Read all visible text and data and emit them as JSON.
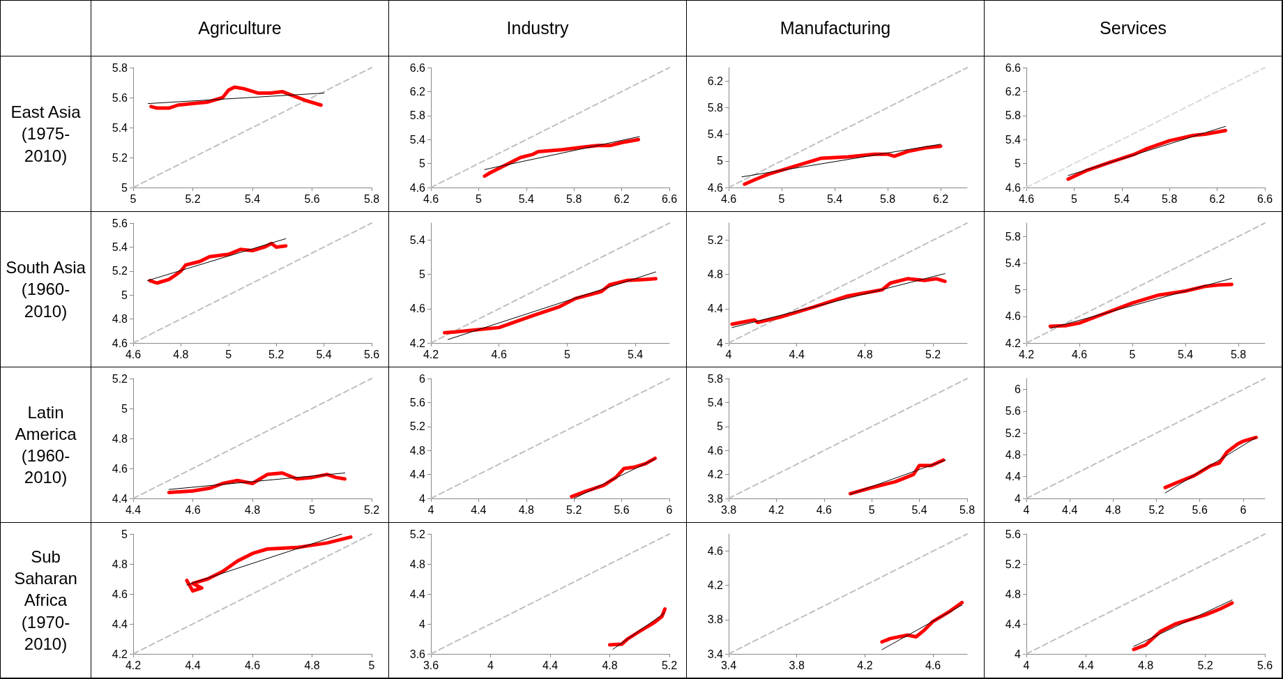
{
  "chart_data": [
    {
      "type": "line",
      "title": "Agriculture",
      "ylabel": "East Asia (1975-2010)",
      "xlim": [
        5,
        5.8
      ],
      "xticks": [
        5,
        5.2,
        5.4,
        5.6,
        5.8
      ],
      "ylim": [
        5,
        5.8
      ],
      "yticks": [
        5,
        5.2,
        5.4,
        5.6,
        5.8
      ],
      "marker": "none",
      "grid": false,
      "series": [
        {
          "color": "#bfbfbf",
          "line_style": "dashed",
          "x": [
            5,
            5.8
          ],
          "values": [
            5,
            5.8
          ]
        },
        {
          "color": "#ff0000",
          "x": [
            5.06,
            5.08,
            5.12,
            5.15,
            5.2,
            5.25,
            5.3,
            5.32,
            5.34,
            5.37,
            5.42,
            5.46,
            5.5,
            5.54,
            5.58,
            5.63
          ],
          "values": [
            5.54,
            5.53,
            5.53,
            5.55,
            5.56,
            5.57,
            5.6,
            5.65,
            5.67,
            5.66,
            5.63,
            5.63,
            5.64,
            5.61,
            5.58,
            5.55
          ]
        },
        {
          "color": "#000000",
          "x": [
            5.05,
            5.64
          ],
          "values": [
            5.56,
            5.63
          ]
        }
      ]
    },
    {
      "type": "line",
      "title": "Industry",
      "xlim": [
        4.6,
        6.6
      ],
      "xticks": [
        4.6,
        5,
        5.4,
        5.8,
        6.2,
        6.6
      ],
      "ylim": [
        4.6,
        6.6
      ],
      "yticks": [
        4.6,
        5,
        5.4,
        5.8,
        6.2,
        6.6
      ],
      "marker": "none",
      "grid": false,
      "series": [
        {
          "color": "#bfbfbf",
          "line_style": "dashed",
          "x": [
            4.6,
            6.6
          ],
          "values": [
            4.6,
            6.6
          ]
        },
        {
          "color": "#ff0000",
          "x": [
            5.05,
            5.1,
            5.2,
            5.35,
            5.45,
            5.5,
            5.7,
            5.9,
            6,
            6.1,
            6.2,
            6.34
          ],
          "values": [
            4.79,
            4.85,
            4.95,
            5.1,
            5.15,
            5.2,
            5.23,
            5.28,
            5.3,
            5.3,
            5.35,
            5.4
          ]
        },
        {
          "color": "#000000",
          "x": [
            5.05,
            6.35
          ],
          "values": [
            4.9,
            5.45
          ]
        }
      ]
    },
    {
      "type": "line",
      "title": "Manufacturing",
      "xlim": [
        4.6,
        6.4
      ],
      "xticks": [
        4.6,
        5,
        5.4,
        5.8,
        6.2
      ],
      "ylim": [
        4.6,
        6.4
      ],
      "yticks": [
        4.6,
        5,
        5.4,
        5.8,
        6.2
      ],
      "marker": "none",
      "grid": false,
      "series": [
        {
          "color": "#bfbfbf",
          "line_style": "dashed",
          "x": [
            4.6,
            6.4
          ],
          "values": [
            4.6,
            6.4
          ]
        },
        {
          "color": "#ff0000",
          "x": [
            4.72,
            4.8,
            4.9,
            5,
            5.1,
            5.2,
            5.3,
            5.5,
            5.7,
            5.8,
            5.85,
            5.95,
            6.1,
            6.2
          ],
          "values": [
            4.65,
            4.72,
            4.8,
            4.86,
            4.92,
            4.98,
            5.04,
            5.06,
            5.1,
            5.1,
            5.07,
            5.14,
            5.2,
            5.22
          ]
        },
        {
          "color": "#000000",
          "x": [
            4.7,
            6.2
          ],
          "values": [
            4.76,
            5.25
          ]
        }
      ]
    },
    {
      "type": "line",
      "title": "Services",
      "xlim": [
        4.6,
        6.6
      ],
      "xticks": [
        4.6,
        5,
        5.4,
        5.8,
        6.2,
        6.6
      ],
      "ylim": [
        4.6,
        6.6
      ],
      "yticks": [
        4.6,
        5,
        5.4,
        5.8,
        6.2,
        6.6
      ],
      "marker": "none",
      "grid": false,
      "series": [
        {
          "color": "#d9d9d9",
          "line_style": "dashed",
          "x": [
            4.6,
            6.6
          ],
          "values": [
            4.6,
            6.6
          ]
        },
        {
          "color": "#ff0000",
          "x": [
            4.95,
            5.1,
            5.3,
            5.5,
            5.6,
            5.8,
            6,
            6.1,
            6.27
          ],
          "values": [
            4.74,
            4.88,
            5.02,
            5.15,
            5.24,
            5.38,
            5.47,
            5.49,
            5.55
          ]
        },
        {
          "color": "#000000",
          "x": [
            4.95,
            6.27
          ],
          "values": [
            4.8,
            5.62
          ]
        }
      ]
    },
    {
      "type": "line",
      "ylabel": "South Asia (1960-2010)",
      "xlim": [
        4.6,
        5.6
      ],
      "xticks": [
        4.6,
        4.8,
        5,
        5.2,
        5.4,
        5.6
      ],
      "ylim": [
        4.6,
        5.6
      ],
      "yticks": [
        4.6,
        4.8,
        5,
        5.2,
        5.4,
        5.6
      ],
      "marker": "none",
      "grid": false,
      "series": [
        {
          "color": "#bfbfbf",
          "line_style": "dashed",
          "x": [
            4.6,
            5.6
          ],
          "values": [
            4.6,
            5.6
          ]
        },
        {
          "color": "#ff0000",
          "x": [
            4.67,
            4.7,
            4.75,
            4.78,
            4.8,
            4.82,
            4.88,
            4.92,
            5,
            5.05,
            5.1,
            5.15,
            5.18,
            5.2,
            5.24
          ],
          "values": [
            5.12,
            5.1,
            5.13,
            5.17,
            5.2,
            5.25,
            5.28,
            5.32,
            5.34,
            5.38,
            5.37,
            5.4,
            5.43,
            5.4,
            5.41
          ]
        },
        {
          "color": "#000000",
          "x": [
            4.66,
            5.24
          ],
          "values": [
            5.12,
            5.47
          ]
        }
      ]
    },
    {
      "type": "line",
      "xlim": [
        4.2,
        5.6
      ],
      "xticks": [
        4.2,
        4.6,
        5,
        5.4
      ],
      "ylim": [
        4.2,
        5.6
      ],
      "yticks": [
        4.2,
        4.6,
        5,
        5.4
      ],
      "marker": "none",
      "grid": false,
      "series": [
        {
          "color": "#bfbfbf",
          "line_style": "dashed",
          "x": [
            4.2,
            5.6
          ],
          "values": [
            4.2,
            5.6
          ]
        },
        {
          "color": "#ff0000",
          "x": [
            4.28,
            4.35,
            4.45,
            4.6,
            4.8,
            4.95,
            5.05,
            5.2,
            5.25,
            5.35,
            5.45,
            5.52
          ],
          "values": [
            4.32,
            4.33,
            4.35,
            4.38,
            4.52,
            4.62,
            4.72,
            4.8,
            4.88,
            4.93,
            4.94,
            4.95
          ]
        },
        {
          "color": "#000000",
          "x": [
            4.3,
            5.52
          ],
          "values": [
            4.24,
            5.03
          ]
        }
      ]
    },
    {
      "type": "line",
      "xlim": [
        4,
        5.4
      ],
      "xticks": [
        4,
        4.4,
        4.8,
        5.2
      ],
      "ylim": [
        4,
        5.4
      ],
      "yticks": [
        4,
        4.4,
        4.8,
        5.2
      ],
      "marker": "none",
      "grid": false,
      "series": [
        {
          "color": "#bfbfbf",
          "line_style": "dashed",
          "x": [
            4,
            5.4
          ],
          "values": [
            4,
            5.4
          ]
        },
        {
          "color": "#ff0000",
          "x": [
            4.02,
            4.1,
            4.15,
            4.17,
            4.3,
            4.5,
            4.7,
            4.9,
            4.95,
            5.05,
            5.15,
            5.22,
            5.27
          ],
          "values": [
            4.22,
            4.25,
            4.27,
            4.24,
            4.3,
            4.42,
            4.55,
            4.62,
            4.7,
            4.75,
            4.73,
            4.75,
            4.72
          ]
        },
        {
          "color": "#000000",
          "x": [
            4.02,
            5.27
          ],
          "values": [
            4.18,
            4.81
          ]
        }
      ]
    },
    {
      "type": "line",
      "xlim": [
        4.2,
        6
      ],
      "xticks": [
        4.2,
        4.6,
        5,
        5.4,
        5.8
      ],
      "ylim": [
        4.2,
        6
      ],
      "yticks": [
        4.2,
        4.6,
        5,
        5.4,
        5.8
      ],
      "marker": "none",
      "grid": false,
      "series": [
        {
          "color": "#bfbfbf",
          "line_style": "dashed",
          "x": [
            4.2,
            6
          ],
          "values": [
            4.2,
            6
          ]
        },
        {
          "color": "#ff0000",
          "x": [
            4.38,
            4.5,
            4.6,
            4.8,
            5,
            5.2,
            5.4,
            5.55,
            5.65,
            5.75
          ],
          "values": [
            4.45,
            4.46,
            4.5,
            4.65,
            4.8,
            4.92,
            4.98,
            5.05,
            5.07,
            5.08
          ]
        },
        {
          "color": "#000000",
          "x": [
            4.38,
            5.75
          ],
          "values": [
            4.42,
            5.17
          ]
        }
      ]
    },
    {
      "type": "line",
      "ylabel": "Latin America (1960-2010)",
      "xlim": [
        4.4,
        5.2
      ],
      "xticks": [
        4.4,
        4.6,
        4.8,
        5,
        5.2
      ],
      "ylim": [
        4.4,
        5.2
      ],
      "yticks": [
        4.4,
        4.6,
        4.8,
        5,
        5.2
      ],
      "marker": "none",
      "grid": false,
      "series": [
        {
          "color": "#bfbfbf",
          "line_style": "dashed",
          "x": [
            4.4,
            5.2
          ],
          "values": [
            4.4,
            5.2
          ]
        },
        {
          "color": "#ff0000",
          "x": [
            4.52,
            4.6,
            4.66,
            4.7,
            4.75,
            4.8,
            4.85,
            4.9,
            4.95,
            5,
            5.05,
            5.08,
            5.11
          ],
          "values": [
            4.44,
            4.45,
            4.47,
            4.5,
            4.52,
            4.5,
            4.56,
            4.57,
            4.53,
            4.54,
            4.56,
            4.54,
            4.53
          ]
        },
        {
          "color": "#000000",
          "x": [
            4.52,
            5.11
          ],
          "values": [
            4.46,
            4.57
          ]
        }
      ]
    },
    {
      "type": "line",
      "xlim": [
        4,
        6
      ],
      "xticks": [
        4,
        4.4,
        4.8,
        5.2,
        5.6,
        6
      ],
      "ylim": [
        4,
        6
      ],
      "yticks": [
        4,
        4.4,
        4.8,
        5.2,
        5.6,
        6
      ],
      "marker": "none",
      "grid": false,
      "series": [
        {
          "color": "#bfbfbf",
          "line_style": "dashed",
          "x": [
            4,
            6
          ],
          "values": [
            4,
            6
          ]
        },
        {
          "color": "#ff0000",
          "x": [
            5.18,
            5.3,
            5.45,
            5.55,
            5.62,
            5.7,
            5.8,
            5.88
          ],
          "values": [
            4.03,
            4.12,
            4.22,
            4.35,
            4.5,
            4.52,
            4.58,
            4.67
          ]
        },
        {
          "color": "#000000",
          "x": [
            5.2,
            5.88
          ],
          "values": [
            4,
            4.66
          ]
        }
      ]
    },
    {
      "type": "line",
      "xlim": [
        3.8,
        5.8
      ],
      "xticks": [
        3.8,
        4.2,
        4.6,
        5,
        5.4,
        5.8
      ],
      "ylim": [
        3.8,
        5.8
      ],
      "yticks": [
        3.8,
        4.2,
        4.6,
        5,
        5.4,
        5.8
      ],
      "marker": "none",
      "grid": false,
      "series": [
        {
          "color": "#bfbfbf",
          "line_style": "dashed",
          "x": [
            3.8,
            5.8
          ],
          "values": [
            3.8,
            5.8
          ]
        },
        {
          "color": "#ff0000",
          "x": [
            4.82,
            5,
            5.2,
            5.35,
            5.4,
            5.5,
            5.6
          ],
          "values": [
            3.88,
            3.98,
            4.08,
            4.2,
            4.35,
            4.35,
            4.44
          ]
        },
        {
          "color": "#000000",
          "x": [
            4.82,
            5.62
          ],
          "values": [
            3.87,
            4.44
          ]
        }
      ]
    },
    {
      "type": "line",
      "xlim": [
        4,
        6.2
      ],
      "xticks": [
        4,
        4.4,
        4.8,
        5.2,
        5.6,
        6
      ],
      "ylim": [
        4,
        6.2
      ],
      "yticks": [
        4,
        4.4,
        4.8,
        5.2,
        5.6,
        6
      ],
      "marker": "none",
      "grid": false,
      "series": [
        {
          "color": "#bfbfbf",
          "line_style": "dashed",
          "x": [
            4,
            6.2
          ],
          "values": [
            4,
            6.2
          ]
        },
        {
          "color": "#ff0000",
          "x": [
            5.28,
            5.4,
            5.55,
            5.7,
            5.78,
            5.85,
            5.95,
            6,
            6.12
          ],
          "values": [
            4.2,
            4.3,
            4.42,
            4.6,
            4.65,
            4.85,
            5,
            5.05,
            5.12
          ]
        },
        {
          "color": "#000000",
          "x": [
            5.28,
            6.12
          ],
          "values": [
            4.1,
            5.12
          ]
        }
      ]
    },
    {
      "type": "line",
      "ylabel": "Sub Saharan Africa (1970-2010)",
      "xlim": [
        4.2,
        5
      ],
      "xticks": [
        4.2,
        4.4,
        4.6,
        4.8,
        5
      ],
      "ylim": [
        4.2,
        5
      ],
      "yticks": [
        4.2,
        4.4,
        4.6,
        4.8,
        5
      ],
      "marker": "none",
      "grid": false,
      "series": [
        {
          "color": "#bfbfbf",
          "line_style": "dashed",
          "x": [
            4.2,
            5
          ],
          "values": [
            4.2,
            5
          ]
        },
        {
          "color": "#ff0000",
          "x": [
            4.38,
            4.4,
            4.43,
            4.4,
            4.45,
            4.5,
            4.55,
            4.6,
            4.65,
            4.75,
            4.85,
            4.93
          ],
          "values": [
            4.69,
            4.62,
            4.64,
            4.67,
            4.7,
            4.75,
            4.82,
            4.87,
            4.9,
            4.91,
            4.94,
            4.98
          ]
        },
        {
          "color": "#000000",
          "x": [
            4.38,
            4.9
          ],
          "values": [
            4.66,
            5
          ]
        }
      ]
    },
    {
      "type": "line",
      "xlim": [
        3.6,
        5.2
      ],
      "xticks": [
        3.6,
        4,
        4.4,
        4.8,
        5.2
      ],
      "ylim": [
        3.6,
        5.2
      ],
      "yticks": [
        3.6,
        4,
        4.4,
        4.8,
        5.2
      ],
      "marker": "none",
      "grid": false,
      "series": [
        {
          "color": "#bfbfbf",
          "line_style": "dashed",
          "x": [
            3.6,
            5.2
          ],
          "values": [
            3.6,
            5.2
          ]
        },
        {
          "color": "#ff0000",
          "x": [
            4.8,
            4.88,
            4.92,
            5,
            5.1,
            5.15,
            5.17
          ],
          "values": [
            3.72,
            3.73,
            3.8,
            3.9,
            4.02,
            4.1,
            4.2
          ]
        },
        {
          "color": "#000000",
          "x": [
            4.82,
            5.17
          ],
          "values": [
            3.66,
            4.15
          ]
        }
      ]
    },
    {
      "type": "line",
      "xlim": [
        3.4,
        4.8
      ],
      "xticks": [
        3.4,
        3.8,
        4.2,
        4.6
      ],
      "ylim": [
        3.4,
        4.8
      ],
      "yticks": [
        3.4,
        3.8,
        4.2,
        4.6
      ],
      "marker": "none",
      "grid": false,
      "series": [
        {
          "color": "#bfbfbf",
          "line_style": "dashed",
          "x": [
            3.4,
            4.8
          ],
          "values": [
            3.4,
            4.8
          ]
        },
        {
          "color": "#ff0000",
          "x": [
            4.3,
            4.35,
            4.45,
            4.5,
            4.55,
            4.6,
            4.7,
            4.77
          ],
          "values": [
            3.54,
            3.58,
            3.62,
            3.6,
            3.68,
            3.78,
            3.9,
            4
          ]
        },
        {
          "color": "#000000",
          "x": [
            4.3,
            4.77
          ],
          "values": [
            3.45,
            3.97
          ]
        }
      ]
    },
    {
      "type": "line",
      "xlim": [
        4,
        5.6
      ],
      "xticks": [
        4,
        4.4,
        4.8,
        5.2,
        5.6
      ],
      "ylim": [
        4,
        5.6
      ],
      "yticks": [
        4,
        4.4,
        4.8,
        5.2,
        5.6
      ],
      "marker": "none",
      "grid": false,
      "series": [
        {
          "color": "#bfbfbf",
          "line_style": "dashed",
          "x": [
            4,
            5.6
          ],
          "values": [
            4,
            5.6
          ]
        },
        {
          "color": "#ff0000",
          "x": [
            4.72,
            4.8,
            4.9,
            5,
            5.1,
            5.2,
            5.3,
            5.38
          ],
          "values": [
            4.06,
            4.12,
            4.3,
            4.4,
            4.46,
            4.52,
            4.6,
            4.68
          ]
        },
        {
          "color": "#000000",
          "x": [
            4.72,
            5.38
          ],
          "values": [
            4.1,
            4.72
          ]
        }
      ]
    }
  ]
}
